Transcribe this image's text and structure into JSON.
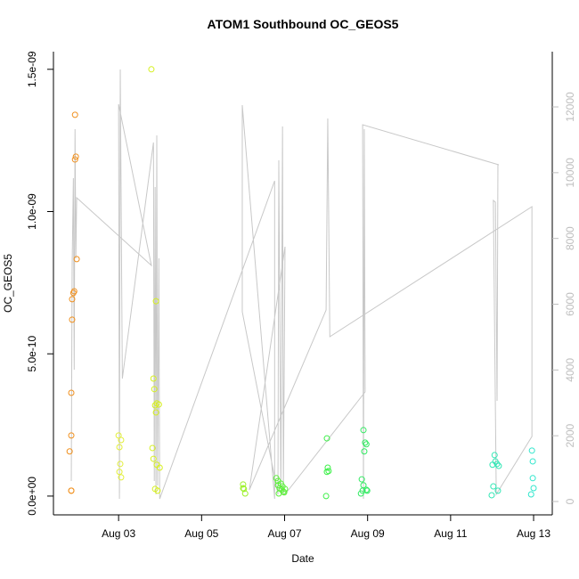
{
  "chart_data": {
    "type": "scatter",
    "title": "ATOM1 Southbound OC_GEOS5",
    "x_label": "Date",
    "y_label": "OC_GEOS5",
    "xlim": [
      1.43,
      13.45
    ],
    "xticks": [
      {
        "value": 3,
        "label": "Aug 03"
      },
      {
        "value": 5,
        "label": "Aug 05"
      },
      {
        "value": 7,
        "label": "Aug 07"
      },
      {
        "value": 9,
        "label": "Aug 09"
      },
      {
        "value": 11,
        "label": "Aug 11"
      },
      {
        "value": 13,
        "label": "Aug 13"
      }
    ],
    "ylim": [
      -6.6e-11,
      1.562e-09
    ],
    "yticks": [
      {
        "value": 0,
        "label": "0.0e+00"
      },
      {
        "value": 5e-10,
        "label": "5.0e-10"
      },
      {
        "value": 1e-09,
        "label": "1.0e-09"
      },
      {
        "value": 1.5e-09,
        "label": "1.5e-09"
      }
    ],
    "y2lim": [
      -406,
      13680
    ],
    "y2ticks": [
      0,
      2000,
      4000,
      6000,
      8000,
      10000,
      12000
    ],
    "y2_color": "#bebebe",
    "series": [
      {
        "color": "#f0901e",
        "x": [
          1.86,
          1.86,
          1.82,
          1.86,
          1.86,
          1.88,
          1.88,
          1.91,
          1.93,
          1.95,
          1.97,
          1.99,
          1.95
        ],
        "values": [
          1.9e-11,
          1.9e-11,
          1.57e-10,
          2.13e-10,
          3.63e-10,
          6.2e-10,
          6.92e-10,
          7.14e-10,
          7.2e-10,
          1.183e-09,
          1.193e-09,
          8.33e-10,
          1.34e-09
        ]
      },
      {
        "color": "#e2ee3a",
        "x": [
          3.0,
          3.02,
          3.06,
          3.04,
          3.02,
          3.06
        ],
        "values": [
          2.13e-10,
          1.72e-10,
          1.97e-10,
          1.13e-10,
          8.5e-11,
          6.6e-11
        ]
      },
      {
        "color": "#d6f01e",
        "x": [
          3.79,
          3.84,
          3.86,
          3.9,
          3.88,
          3.92,
          3.97,
          3.9,
          3.815,
          3.84,
          3.92,
          3.99,
          3.88,
          3.94
        ],
        "values": [
          1.5e-09,
          4.13e-10,
          3.76e-10,
          6.85e-10,
          3.19e-10,
          3.26e-10,
          3.22e-10,
          2.94e-10,
          1.69e-10,
          1.31e-10,
          1.1e-10,
          1e-10,
          2.5e-11,
          1.9e-11
        ]
      },
      {
        "color": "#9cf02a",
        "x": [
          6.0,
          6.02,
          6.05,
          6.0
        ],
        "values": [
          4.1e-11,
          2.5e-11,
          9e-12,
          2.8e-11
        ]
      },
      {
        "color": "#5cf03a",
        "x": [
          6.8,
          6.84,
          6.88,
          6.93,
          6.97,
          6.86,
          6.95,
          7.01,
          6.84,
          6.91,
          6.99
        ],
        "values": [
          6.3e-11,
          3.8e-11,
          2.8e-11,
          2.2e-11,
          1.6e-11,
          9e-12,
          3.4e-11,
          2.5e-11,
          5.3e-11,
          4.4e-11,
          1.3e-11
        ]
      },
      {
        "color": "#3cf048",
        "x": [
          8.02,
          8.04,
          8.06,
          8.02,
          8.0
        ],
        "values": [
          2.03e-10,
          1e-10,
          8.8e-11,
          8.5e-11,
          0
        ]
      },
      {
        "color": "#32ea62",
        "x": [
          8.9,
          8.94,
          8.97,
          8.92,
          8.86,
          8.88,
          8.97,
          8.84,
          8.9,
          8.99
        ],
        "values": [
          2.32e-10,
          1.88e-10,
          1.82e-10,
          1.57e-10,
          5.9e-11,
          1.9e-11,
          2.2e-11,
          9e-12,
          3.8e-11,
          1.9e-11
        ]
      },
      {
        "color": "#30e6b4",
        "x": [
          12.01,
          12.08,
          12.12,
          12.06,
          12.16,
          12.03,
          12.14,
          11.99
        ],
        "values": [
          1.1e-10,
          1.22e-10,
          1.13e-10,
          1.44e-10,
          1.06e-10,
          3.4e-11,
          1.9e-11,
          3e-12
        ]
      },
      {
        "color": "#30e6cc",
        "x": [
          12.96,
          12.98,
          12.98,
          13.0,
          12.94
        ],
        "values": [
          1.6e-10,
          1.22e-10,
          6.3e-11,
          2.8e-11,
          6e-12
        ]
      },
      {
        "color": "#c8c8c8",
        "axis": "y2",
        "x": [
          1.86,
          1.88,
          1.91,
          1.93,
          1.95,
          1.97,
          1.99,
          3.79,
          3.0,
          3.02,
          3.04,
          3.09,
          3.84,
          3.86,
          3.88,
          3.9,
          3.92,
          3.94,
          3.97,
          3.99,
          6.76,
          6.76,
          5.98,
          5.98,
          6.84,
          6.86,
          6.91,
          6.95,
          6.97,
          7.01,
          6.15,
          8.0,
          8.04,
          8.09,
          12.96,
          12.96,
          12.1,
          12.03,
          12.08,
          12.12,
          12.14,
          12.16,
          8.88,
          8.9,
          8.92,
          8.94,
          7.01
        ],
        "values": [
          623,
          7125,
          9834,
          4009,
          11324,
          7396,
          9238,
          7179,
          12082,
          81,
          13139,
          3738,
          10917,
          623,
          9563,
          217,
          11134,
          488,
          7396,
          81,
          9752,
          81,
          12055,
          5770,
          217,
          10375,
          217,
          11405,
          217,
          7748,
          352,
          5824,
          11649,
          5012,
          8967,
          1978,
          217,
          9156,
          9102,
          3061,
          10240,
          10240,
          11459,
          81,
          11324,
          3332,
          217
        ]
      }
    ]
  }
}
